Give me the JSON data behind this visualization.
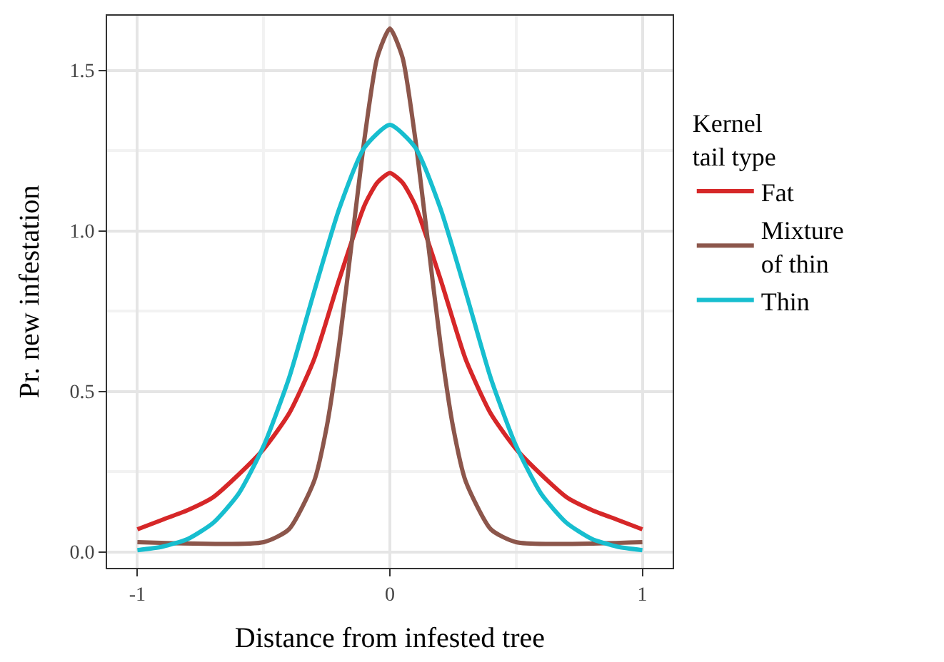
{
  "chart_data": {
    "type": "line",
    "xlabel": "Distance from infested tree",
    "ylabel": "Pr. new infestation",
    "legend_title": "Kernel\ntail type",
    "legend": "right",
    "grid": true,
    "line_style": "solid",
    "marker": "none",
    "xlim": [
      -1.12,
      1.12
    ],
    "xticks": [
      -1,
      0,
      1
    ],
    "ylim": [
      -0.05,
      1.67
    ],
    "yticks": [
      {
        "value": 0,
        "label": "0.0"
      },
      {
        "value": 0.5,
        "label": "0.5"
      },
      {
        "value": 1,
        "label": "1.0"
      },
      {
        "value": 1.5,
        "label": "1.5"
      }
    ],
    "series": [
      {
        "name": "Fat",
        "color": "#d62728",
        "x": [
          -1,
          -0.9,
          -0.8,
          -0.7,
          -0.6,
          -0.5,
          -0.4,
          -0.3,
          -0.2,
          -0.1,
          -0.05,
          0,
          0.05,
          0.1,
          0.2,
          0.3,
          0.4,
          0.5,
          0.6,
          0.7,
          0.8,
          0.9,
          1
        ],
        "values": [
          0.07,
          0.1,
          0.13,
          0.17,
          0.24,
          0.32,
          0.43,
          0.6,
          0.85,
          1.08,
          1.15,
          1.18,
          1.15,
          1.08,
          0.85,
          0.6,
          0.43,
          0.32,
          0.24,
          0.17,
          0.13,
          0.1,
          0.07
        ]
      },
      {
        "name": "Mixture\nof thin",
        "color": "#8c564b",
        "x": [
          -1,
          -0.5,
          -0.4,
          -0.3,
          -0.25,
          -0.2,
          -0.15,
          -0.1,
          -0.05,
          0,
          0.05,
          0.1,
          0.15,
          0.2,
          0.25,
          0.3,
          0.4,
          0.5,
          1
        ],
        "values": [
          0.03,
          0.03,
          0.07,
          0.22,
          0.39,
          0.65,
          0.97,
          1.29,
          1.54,
          1.63,
          1.54,
          1.29,
          0.97,
          0.65,
          0.39,
          0.22,
          0.07,
          0.03,
          0.03
        ]
      },
      {
        "name": "Thin",
        "color": "#17becf",
        "x": [
          -1,
          -0.9,
          -0.8,
          -0.7,
          -0.6,
          -0.5,
          -0.4,
          -0.3,
          -0.2,
          -0.1,
          0,
          0.1,
          0.2,
          0.3,
          0.4,
          0.5,
          0.6,
          0.7,
          0.8,
          0.9,
          1
        ],
        "values": [
          0.005,
          0.016,
          0.04,
          0.09,
          0.18,
          0.33,
          0.54,
          0.81,
          1.07,
          1.26,
          1.33,
          1.26,
          1.07,
          0.81,
          0.54,
          0.33,
          0.18,
          0.09,
          0.04,
          0.016,
          0.005
        ]
      }
    ]
  }
}
